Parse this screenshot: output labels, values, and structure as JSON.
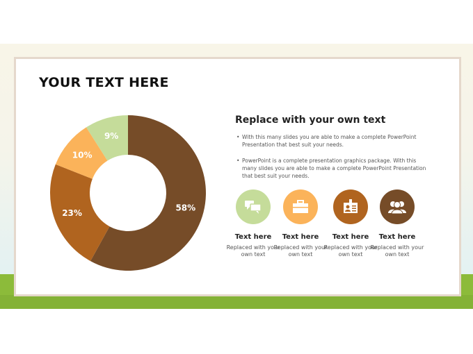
{
  "slide": {
    "title": "YOUR TEXT HERE"
  },
  "right": {
    "heading": "Replace with your own text",
    "bullets": [
      "With this many slides you are able to make a complete PowerPoint Presentation that best suit your needs.",
      "PowerPoint is a complete presentation graphics package. With this many slides you are able to make a complete PowerPoint Presentation that best suit your needs."
    ],
    "items": [
      {
        "icon": "chat-bubbles-icon",
        "color": "#c5dc9a",
        "title": "Text here",
        "desc": "Replaced with your own text"
      },
      {
        "icon": "briefcase-icon",
        "color": "#fbb35a",
        "title": "Text here",
        "desc": "Replaced with your own text"
      },
      {
        "icon": "id-card-icon",
        "color": "#b0641f",
        "title": "Text here",
        "desc": "Replaced with your own text"
      },
      {
        "icon": "users-icon",
        "color": "#764c28",
        "title": "Text here",
        "desc": "Replaced with your own text"
      }
    ]
  },
  "chart_data": {
    "type": "pie",
    "donut": true,
    "start": "top",
    "direction": "clockwise",
    "values": [
      58,
      23,
      10,
      9
    ],
    "labels": [
      "58%",
      "23%",
      "10%",
      "9%"
    ],
    "colors": [
      "#764c28",
      "#b0641f",
      "#fbb35a",
      "#c5dc9a"
    ]
  }
}
